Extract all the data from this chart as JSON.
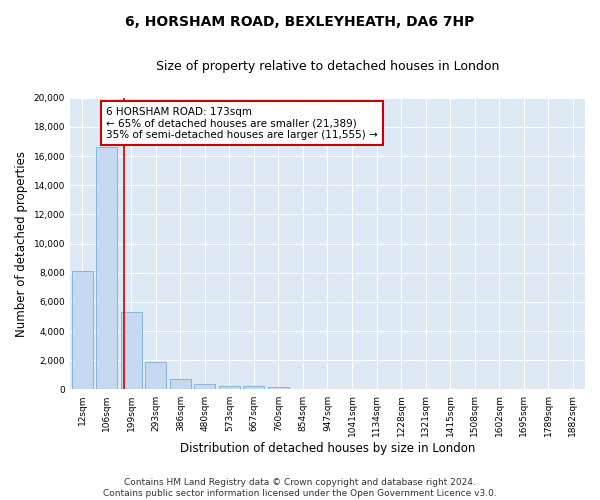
{
  "title_line1": "6, HORSHAM ROAD, BEXLEYHEATH, DA6 7HP",
  "title_line2": "Size of property relative to detached houses in London",
  "xlabel": "Distribution of detached houses by size in London",
  "ylabel": "Number of detached properties",
  "categories": [
    "12sqm",
    "106sqm",
    "199sqm",
    "293sqm",
    "386sqm",
    "480sqm",
    "573sqm",
    "667sqm",
    "760sqm",
    "854sqm",
    "947sqm",
    "1041sqm",
    "1134sqm",
    "1228sqm",
    "1321sqm",
    "1415sqm",
    "1508sqm",
    "1602sqm",
    "1695sqm",
    "1789sqm",
    "1882sqm"
  ],
  "values": [
    8100,
    16600,
    5300,
    1850,
    750,
    350,
    270,
    230,
    170,
    0,
    0,
    0,
    0,
    0,
    0,
    0,
    0,
    0,
    0,
    0,
    0
  ],
  "bar_color": "#c5d8ef",
  "bar_edge_color": "#7bafd4",
  "vline_x": 1.72,
  "vline_color": "#cc0000",
  "annotation_text": "6 HORSHAM ROAD: 173sqm\n← 65% of detached houses are smaller (21,389)\n35% of semi-detached houses are larger (11,555) →",
  "annotation_box_color": "#ffffff",
  "annotation_box_edge": "#cc0000",
  "ylim": [
    0,
    20000
  ],
  "yticks": [
    0,
    2000,
    4000,
    6000,
    8000,
    10000,
    12000,
    14000,
    16000,
    18000,
    20000
  ],
  "fig_bg_color": "#ffffff",
  "plot_bg_color": "#dce9f5",
  "grid_color": "#ffffff",
  "footer_line1": "Contains HM Land Registry data © Crown copyright and database right 2024.",
  "footer_line2": "Contains public sector information licensed under the Open Government Licence v3.0.",
  "title_fontsize": 10,
  "subtitle_fontsize": 9,
  "axis_label_fontsize": 8.5,
  "tick_fontsize": 6.5,
  "annotation_fontsize": 7.5,
  "footer_fontsize": 6.5
}
